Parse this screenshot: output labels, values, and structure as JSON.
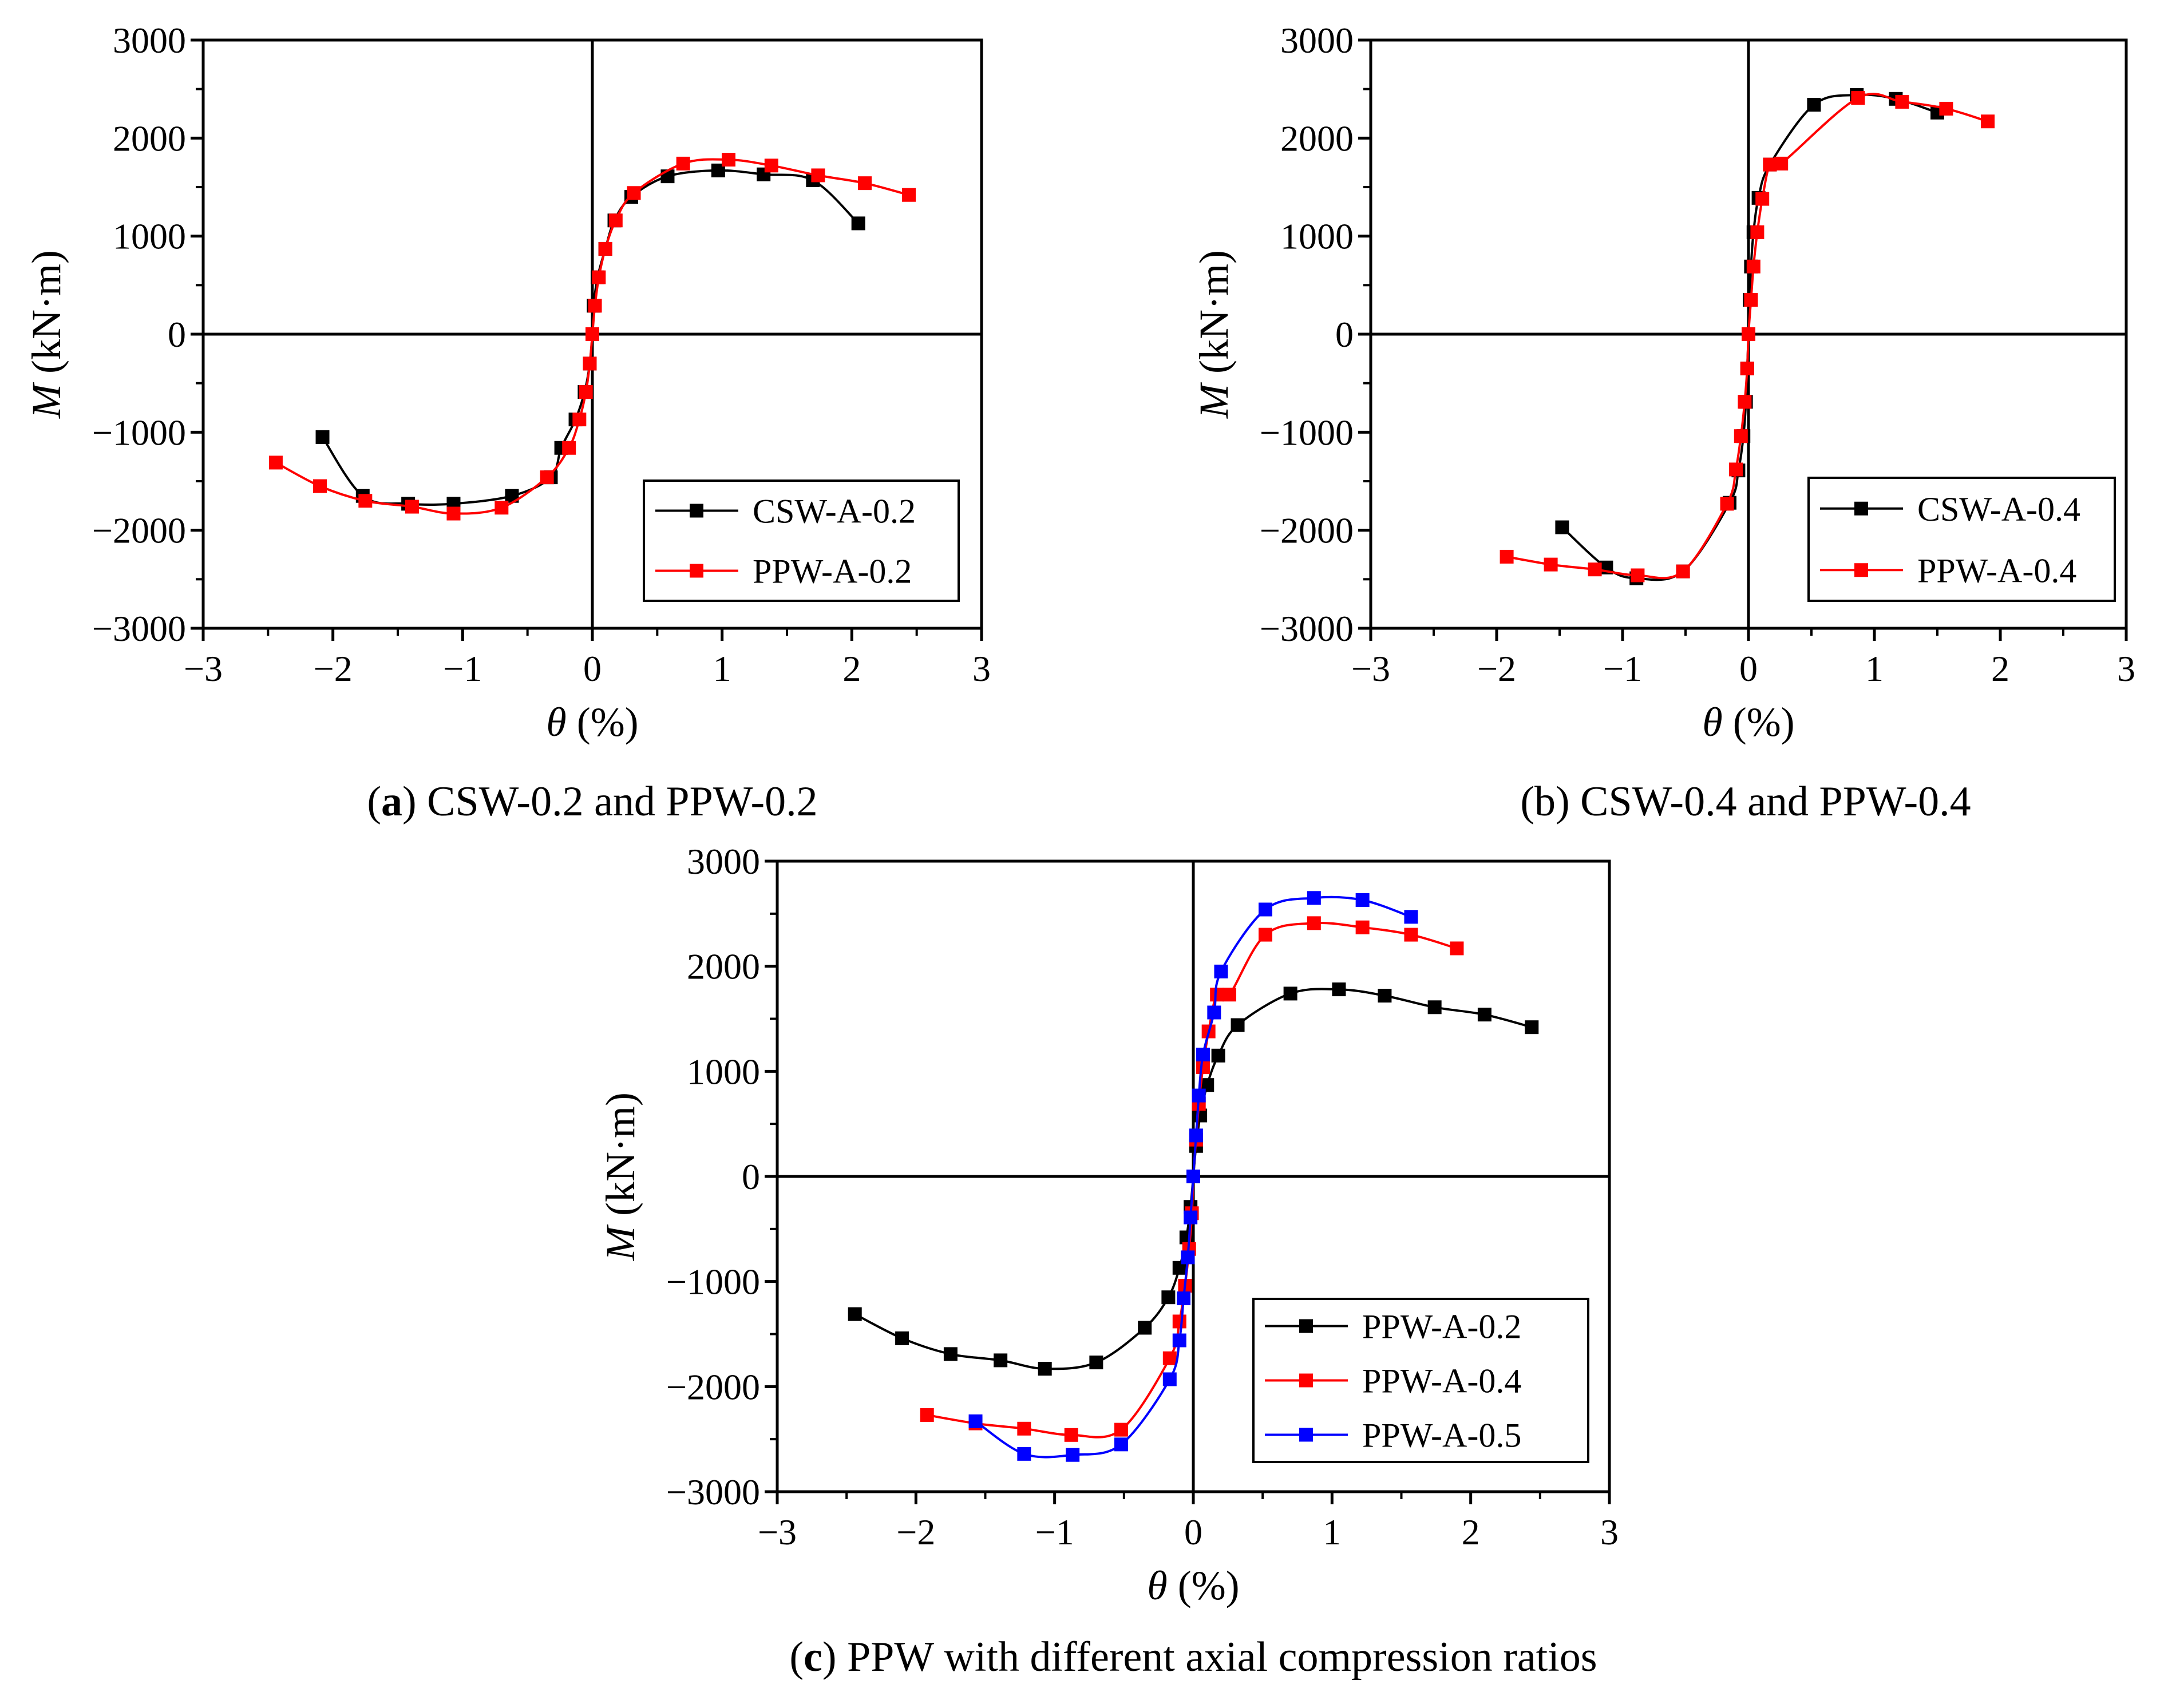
{
  "chart_data": [
    {
      "id": "a",
      "type": "line",
      "caption": {
        "open": "(",
        "letter": "a",
        "close": ")",
        "text": " CSW-0.2 and PPW-0.2",
        "bold": true
      },
      "xlabel": {
        "symbol": "θ",
        "unit": " (%)"
      },
      "ylabel": {
        "symbol": "M",
        "unit": " (kN·m)"
      },
      "xlim": [
        -3,
        3
      ],
      "ylim": [
        -3000,
        3000
      ],
      "xticks": [
        -3,
        -2,
        -1,
        0,
        1,
        2,
        3
      ],
      "yticks": [
        -3000,
        -2000,
        -1000,
        0,
        1000,
        2000,
        3000
      ],
      "xtick_labels": [
        "−3",
        "−2",
        "−1",
        "0",
        "1",
        "2",
        "3"
      ],
      "ytick_labels": [
        "−3000",
        "−2000",
        "−1000",
        "0",
        "1000",
        "2000",
        "3000"
      ],
      "legend_position": "bottom-right",
      "series": [
        {
          "name": "CSW-A-0.2",
          "color": "#000000",
          "x": [
            -2.08,
            -1.77,
            -1.42,
            -1.07,
            -0.62,
            -0.32,
            -0.24,
            -0.13,
            -0.06,
            -0.02,
            0.0,
            0.01,
            0.04,
            0.1,
            0.17,
            0.3,
            0.58,
            0.97,
            1.32,
            1.7,
            2.05
          ],
          "y": [
            -1050,
            -1650,
            -1730,
            -1730,
            -1650,
            -1460,
            -1160,
            -870,
            -590,
            -300,
            0,
            290,
            580,
            870,
            1160,
            1400,
            1610,
            1670,
            1630,
            1570,
            1130
          ]
        },
        {
          "name": "PPW-A-0.2",
          "color": "#ff0000",
          "x": [
            -2.44,
            -2.1,
            -1.75,
            -1.39,
            -1.07,
            -0.7,
            -0.35,
            -0.18,
            -0.1,
            -0.05,
            -0.02,
            0.0,
            0.02,
            0.05,
            0.1,
            0.18,
            0.32,
            0.7,
            1.05,
            1.38,
            1.74,
            2.1,
            2.44
          ],
          "y": [
            -1310,
            -1550,
            -1700,
            -1760,
            -1830,
            -1770,
            -1460,
            -1160,
            -870,
            -590,
            -300,
            0,
            290,
            580,
            870,
            1160,
            1440,
            1740,
            1780,
            1720,
            1620,
            1540,
            1420
          ]
        }
      ]
    },
    {
      "id": "b",
      "type": "line",
      "caption": {
        "open": "(",
        "letter": "b",
        "close": ")",
        "text": " CSW-0.4 and PPW-0.4",
        "bold": false
      },
      "xlabel": {
        "symbol": "θ",
        "unit": " (%)"
      },
      "ylabel": {
        "symbol": "M",
        "unit": " (kN·m)"
      },
      "xlim": [
        -3,
        3
      ],
      "ylim": [
        -3000,
        3000
      ],
      "xticks": [
        -3,
        -2,
        -1,
        0,
        1,
        2,
        3
      ],
      "yticks": [
        -3000,
        -2000,
        -1000,
        0,
        1000,
        2000,
        3000
      ],
      "xtick_labels": [
        "−3",
        "−2",
        "−1",
        "0",
        "1",
        "2",
        "3"
      ],
      "ytick_labels": [
        "−3000",
        "−2000",
        "−1000",
        "0",
        "1000",
        "2000",
        "3000"
      ],
      "legend_position": "bottom-right",
      "series": [
        {
          "name": "CSW-A-0.4",
          "color": "#000000",
          "x": [
            -1.48,
            -1.13,
            -0.89,
            -0.52,
            -0.15,
            -0.08,
            -0.04,
            -0.02,
            -0.01,
            0.0,
            0.01,
            0.02,
            0.04,
            0.08,
            0.17,
            0.52,
            0.86,
            1.17,
            1.5
          ],
          "y": [
            -1970,
            -2380,
            -2490,
            -2420,
            -1720,
            -1390,
            -1040,
            -690,
            -350,
            0,
            350,
            690,
            1040,
            1390,
            1730,
            2340,
            2440,
            2400,
            2260
          ]
        },
        {
          "name": "PPW-A-0.4",
          "color": "#ff0000",
          "x": [
            -1.92,
            -1.57,
            -1.22,
            -0.88,
            -0.52,
            -0.17,
            -0.1,
            -0.06,
            -0.03,
            -0.01,
            0.0,
            0.02,
            0.04,
            0.07,
            0.11,
            0.17,
            0.26,
            0.87,
            1.22,
            1.57,
            1.9
          ],
          "y": [
            -2270,
            -2350,
            -2400,
            -2460,
            -2420,
            -1730,
            -1380,
            -1040,
            -690,
            -350,
            0,
            350,
            690,
            1040,
            1380,
            1730,
            1740,
            2410,
            2370,
            2300,
            2170
          ]
        }
      ]
    },
    {
      "id": "c",
      "type": "line",
      "caption": {
        "open": "(",
        "letter": "c",
        "close": ")",
        "text": " PPW with different axial compression ratios",
        "bold": true
      },
      "xlabel": {
        "symbol": "θ",
        "unit": " (%)"
      },
      "ylabel": {
        "symbol": "M",
        "unit": " (kN·m)"
      },
      "xlim": [
        -3,
        3
      ],
      "ylim": [
        -3000,
        3000
      ],
      "xticks": [
        -3,
        -2,
        -1,
        0,
        1,
        2,
        3
      ],
      "yticks": [
        -3000,
        -2000,
        -1000,
        0,
        1000,
        2000,
        3000
      ],
      "xtick_labels": [
        "−3",
        "−2",
        "−1",
        "0",
        "1",
        "2",
        "3"
      ],
      "ytick_labels": [
        "−3000",
        "−2000",
        "−1000",
        "0",
        "1000",
        "2000",
        "3000"
      ],
      "legend_position": "bottom-right",
      "series": [
        {
          "name": "PPW-A-0.2",
          "color": "#000000",
          "x": [
            -2.44,
            -2.1,
            -1.75,
            -1.39,
            -1.07,
            -0.7,
            -0.35,
            -0.18,
            -0.1,
            -0.05,
            -0.02,
            0.0,
            0.02,
            0.05,
            0.1,
            0.18,
            0.32,
            0.7,
            1.05,
            1.38,
            1.74,
            2.1,
            2.44
          ],
          "y": [
            -1310,
            -1540,
            -1690,
            -1750,
            -1830,
            -1770,
            -1440,
            -1150,
            -870,
            -580,
            -290,
            0,
            290,
            580,
            870,
            1150,
            1440,
            1740,
            1780,
            1720,
            1610,
            1540,
            1420
          ]
        },
        {
          "name": "PPW-A-0.4",
          "color": "#ff0000",
          "x": [
            -1.92,
            -1.57,
            -1.22,
            -0.88,
            -0.52,
            -0.17,
            -0.1,
            -0.06,
            -0.03,
            -0.01,
            0.0,
            0.02,
            0.04,
            0.07,
            0.11,
            0.17,
            0.26,
            0.52,
            0.87,
            1.22,
            1.57,
            1.9
          ],
          "y": [
            -2270,
            -2350,
            -2400,
            -2460,
            -2410,
            -1730,
            -1380,
            -1040,
            -690,
            -350,
            0,
            350,
            690,
            1040,
            1380,
            1730,
            1730,
            2300,
            2410,
            2370,
            2300,
            2170
          ]
        },
        {
          "name": "PPW-A-0.5",
          "color": "#0000ff",
          "x": [
            -1.57,
            -1.22,
            -0.87,
            -0.52,
            -0.17,
            -0.1,
            -0.07,
            -0.04,
            -0.02,
            0.0,
            0.02,
            0.04,
            0.07,
            0.15,
            0.2,
            0.52,
            0.87,
            1.22,
            1.57
          ],
          "y": [
            -2330,
            -2640,
            -2650,
            -2550,
            -1930,
            -1560,
            -1160,
            -770,
            -390,
            0,
            390,
            770,
            1160,
            1560,
            1950,
            2540,
            2650,
            2630,
            2470
          ]
        }
      ]
    }
  ]
}
